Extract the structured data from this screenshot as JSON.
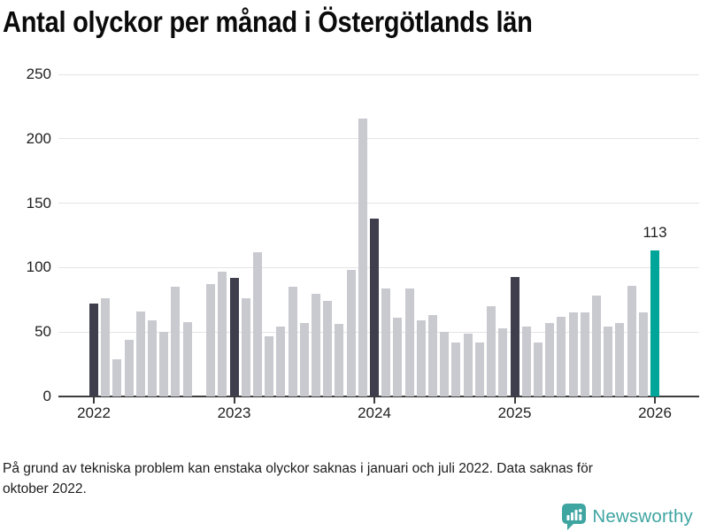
{
  "title": "Antal olyckor per månad i Östergötlands län",
  "footnote": "På grund av tekniska problem kan enstaka olyckor saknas i januari och juli 2022. Data saknas för\noktober 2022.",
  "logo": {
    "name": "Newsworthy",
    "color": "#3ea5a1"
  },
  "chart_data": {
    "type": "bar",
    "title": "Antal olyckor per månad i Östergötlands län",
    "xlabel": "",
    "ylabel": "",
    "ylim": [
      0,
      250
    ],
    "y_ticks": [
      0,
      50,
      100,
      150,
      200,
      250
    ],
    "x_tick_labels": [
      "2022",
      "2023",
      "2024",
      "2025",
      "2026"
    ],
    "grid": "horizontal",
    "legend": "none",
    "months": [
      "2022-01",
      "2022-02",
      "2022-03",
      "2022-04",
      "2022-05",
      "2022-06",
      "2022-07",
      "2022-08",
      "2022-09",
      "2022-10",
      "2022-11",
      "2022-12",
      "2023-01",
      "2023-02",
      "2023-03",
      "2023-04",
      "2023-05",
      "2023-06",
      "2023-07",
      "2023-08",
      "2023-09",
      "2023-10",
      "2023-11",
      "2023-12",
      "2024-01",
      "2024-02",
      "2024-03",
      "2024-04",
      "2024-05",
      "2024-06",
      "2024-07",
      "2024-08",
      "2024-09",
      "2024-10",
      "2024-11",
      "2024-12",
      "2025-01",
      "2025-02",
      "2025-03",
      "2025-04",
      "2025-05",
      "2025-06",
      "2025-07",
      "2025-08",
      "2025-09",
      "2025-10",
      "2025-11",
      "2025-12",
      "2026-01"
    ],
    "values": [
      72,
      76,
      29,
      44,
      66,
      59,
      50,
      85,
      58,
      null,
      87,
      97,
      92,
      76,
      112,
      47,
      54,
      85,
      57,
      80,
      74,
      56,
      98,
      216,
      138,
      84,
      61,
      84,
      59,
      63,
      50,
      42,
      49,
      42,
      70,
      53,
      93,
      54,
      42,
      57,
      62,
      65,
      65,
      78,
      54,
      57,
      86,
      65,
      113
    ],
    "missing_months": [
      "2022-10"
    ],
    "highlight_months": [
      "2022-01",
      "2023-01",
      "2024-01",
      "2025-01"
    ],
    "latest_month": "2026-01",
    "value_label": {
      "month": "2026-01",
      "text": "113"
    },
    "colors": {
      "bar_default": "#c9c9d0",
      "bar_highlight": "#3e3e4d",
      "bar_latest": "#00a59a",
      "gridline": "#e4e4e6",
      "axis": "#3c3c3c",
      "tick_text": "#1f1f1f"
    }
  }
}
